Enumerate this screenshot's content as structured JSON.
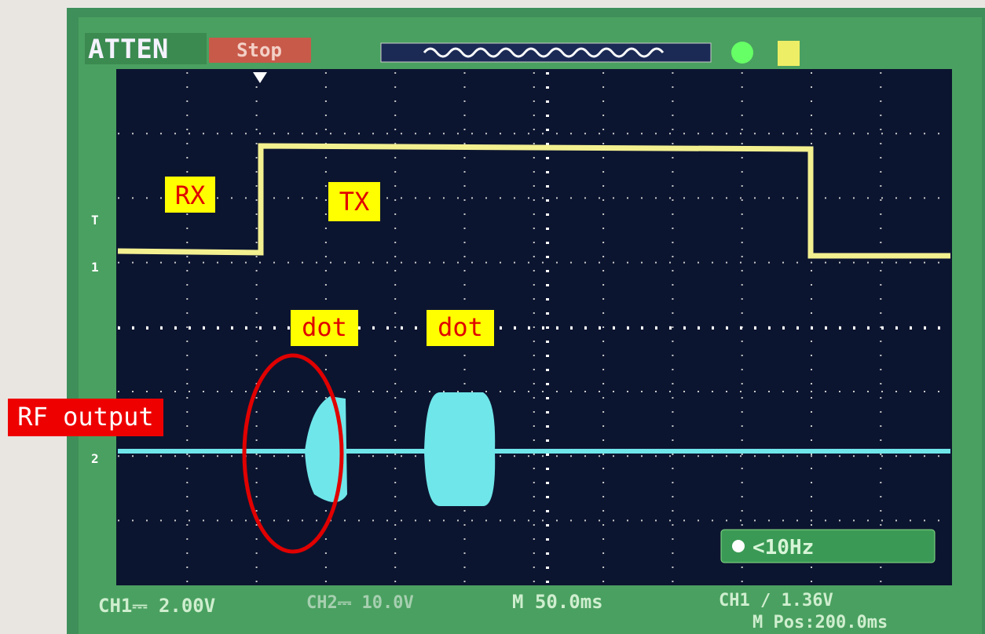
{
  "header": {
    "mode": "ATTEN",
    "state": "Stop"
  },
  "markers": {
    "trigger": "T",
    "ch1": "1",
    "ch2": "2"
  },
  "annotations": {
    "rx": "RX",
    "tx": "TX",
    "dot1": "dot",
    "dot2": "dot",
    "rf_output": "RF output"
  },
  "trigger_info": {
    "frequency": "<10Hz"
  },
  "status": {
    "ch1": "CH1⎓ 2.00V",
    "ch2": "CH2⎓ 10.0V",
    "timebase": "M 50.0ms",
    "trigger_level": "CH1 ∕ 1.36V",
    "position": "M Pos:200.0ms"
  }
}
